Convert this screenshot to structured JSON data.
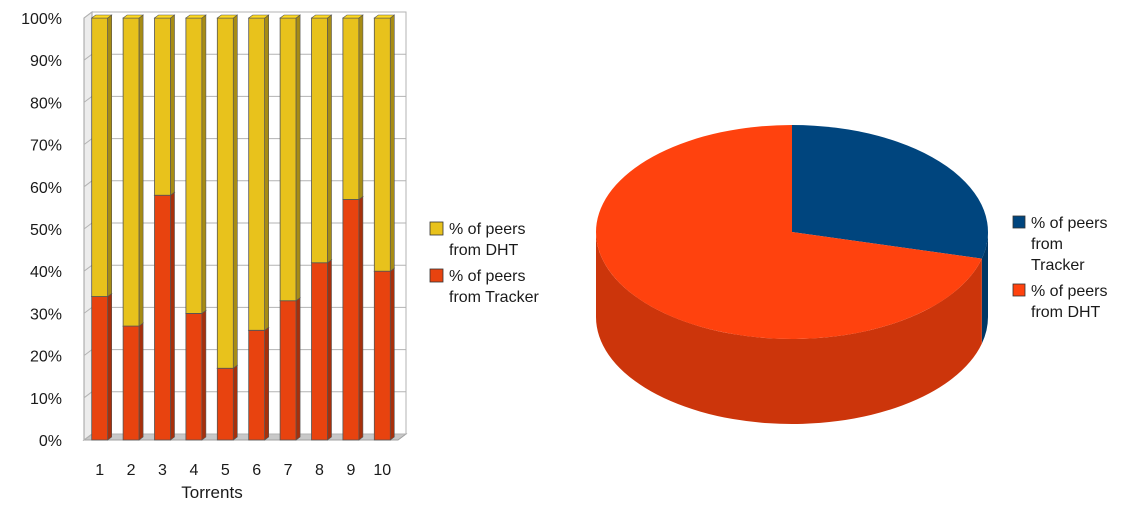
{
  "chart_data": [
    {
      "type": "bar",
      "stacked": true,
      "percent": true,
      "three_d": true,
      "categories": [
        "1",
        "2",
        "3",
        "4",
        "5",
        "6",
        "7",
        "8",
        "9",
        "10"
      ],
      "series": [
        {
          "name": "% of peers from Tracker",
          "color": "#e8430f",
          "values": [
            34,
            27,
            58,
            30,
            17,
            26,
            33,
            42,
            57,
            40
          ]
        },
        {
          "name": "% of peers from DHT",
          "color": "#e8c21c",
          "values": [
            66,
            73,
            42,
            70,
            83,
            74,
            67,
            58,
            43,
            60
          ]
        }
      ],
      "xlabel": "Torrents",
      "ylabel": "",
      "ylim": [
        0,
        100
      ],
      "yticks": [
        "0%",
        "10%",
        "20%",
        "30%",
        "40%",
        "50%",
        "60%",
        "70%",
        "80%",
        "90%",
        "100%"
      ],
      "grid": true,
      "legend": {
        "position": "right",
        "items": [
          {
            "lines": [
              "% of peers",
              "from DHT"
            ],
            "color": "#e8c21c"
          },
          {
            "lines": [
              "% of peers",
              "from Tracker"
            ],
            "color": "#e8430f"
          }
        ]
      }
    },
    {
      "type": "pie",
      "three_d": true,
      "labels": [
        "% of peers from Tracker",
        "% of peers from DHT"
      ],
      "values": [
        29,
        71
      ],
      "colors": [
        "#00457e",
        "#ff420e"
      ],
      "legend": {
        "position": "right",
        "items": [
          {
            "lines": [
              "% of peers",
              "from",
              "Tracker"
            ],
            "color": "#00457e"
          },
          {
            "lines": [
              "% of peers",
              "from DHT"
            ],
            "color": "#ff420e"
          }
        ]
      }
    }
  ]
}
